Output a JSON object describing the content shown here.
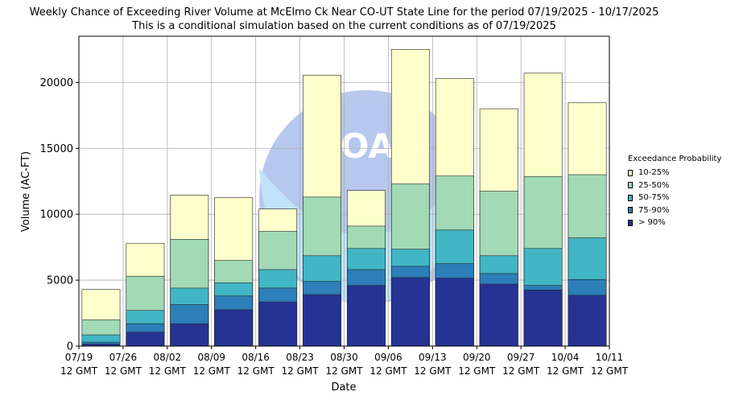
{
  "chart_data": {
    "type": "bar",
    "title": "Weekly Chance of Exceeding River Volume at McElmo Ck Near CO-UT State Line for the period 07/19/2025 - 10/17/2025",
    "subtitle": "This is a conditional simulation based on the current conditions as of 07/19/2025",
    "xlabel": "Date",
    "ylabel": "Volume (AC-FT)",
    "ylim": [
      0,
      23500
    ],
    "yticks": [
      0,
      5000,
      10000,
      15000,
      20000
    ],
    "xtick_labels": [
      [
        "07/19",
        "12 GMT"
      ],
      [
        "07/26",
        "12 GMT"
      ],
      [
        "08/02",
        "12 GMT"
      ],
      [
        "08/09",
        "12 GMT"
      ],
      [
        "08/16",
        "12 GMT"
      ],
      [
        "08/23",
        "12 GMT"
      ],
      [
        "08/30",
        "12 GMT"
      ],
      [
        "09/06",
        "12 GMT"
      ],
      [
        "09/13",
        "12 GMT"
      ],
      [
        "09/20",
        "12 GMT"
      ],
      [
        "09/27",
        "12 GMT"
      ],
      [
        "10/04",
        "12 GMT"
      ],
      [
        "10/11",
        "12 GMT"
      ]
    ],
    "grid": true,
    "legend_title": "Exceedance Probability",
    "legend_position": "right",
    "series": [
      {
        "name": "10-25%",
        "color": "#ffffcc",
        "values": [
          4300,
          7800,
          11450,
          11250,
          10400,
          20550,
          11800,
          22500,
          20300,
          18000,
          20700,
          18450
        ]
      },
      {
        "name": "25-50%",
        "color": "#a1dab4",
        "values": [
          2000,
          5300,
          8100,
          6500,
          8700,
          11300,
          9100,
          12300,
          12900,
          11750,
          12850,
          13000
        ]
      },
      {
        "name": "50-75%",
        "color": "#41b6c4",
        "values": [
          850,
          2700,
          4400,
          4800,
          5800,
          6850,
          7400,
          7350,
          8800,
          6850,
          7400,
          8200
        ]
      },
      {
        "name": "75-90%",
        "color": "#2c7fb8",
        "values": [
          300,
          1700,
          3150,
          3800,
          4400,
          4900,
          5800,
          6050,
          6250,
          5500,
          4600,
          5050
        ]
      },
      {
        "name": "> 90%",
        "color": "#253494",
        "values": [
          150,
          1050,
          1700,
          2750,
          3350,
          3900,
          4600,
          5200,
          5150,
          4700,
          4250,
          3850
        ]
      }
    ]
  }
}
